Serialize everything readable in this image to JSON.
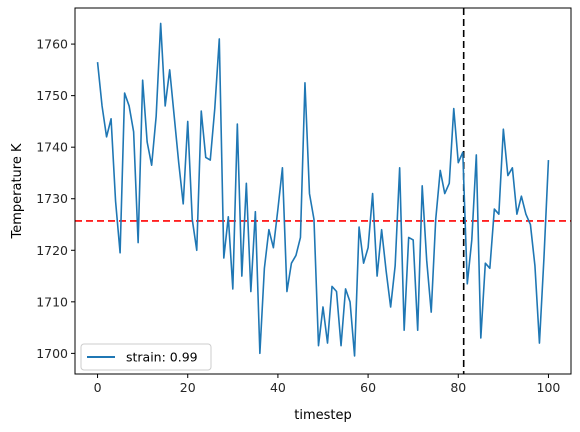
{
  "chart_data": {
    "type": "line",
    "title": "",
    "xlabel": "timestep",
    "ylabel": "Temperature K",
    "xlim": [
      -5,
      105
    ],
    "ylim": [
      1696,
      1767
    ],
    "xticks": [
      0,
      20,
      40,
      60,
      80,
      100
    ],
    "yticks": [
      1700,
      1710,
      1720,
      1730,
      1740,
      1750,
      1760
    ],
    "grid": false,
    "legend_position": "lower-left",
    "series": [
      {
        "name": "strain: 0.99",
        "color": "#1f77b4",
        "x": [
          0,
          1,
          2,
          3,
          4,
          5,
          6,
          7,
          8,
          9,
          10,
          11,
          12,
          13,
          14,
          15,
          16,
          17,
          18,
          19,
          20,
          21,
          22,
          23,
          24,
          25,
          26,
          27,
          28,
          29,
          30,
          31,
          32,
          33,
          34,
          35,
          36,
          37,
          38,
          39,
          40,
          41,
          42,
          43,
          44,
          45,
          46,
          47,
          48,
          49,
          50,
          51,
          52,
          53,
          54,
          55,
          56,
          57,
          58,
          59,
          60,
          61,
          62,
          63,
          64,
          65,
          66,
          67,
          68,
          69,
          70,
          71,
          72,
          73,
          74,
          75,
          76,
          77,
          78,
          79,
          80,
          81,
          82,
          83,
          84,
          85,
          86,
          87,
          88,
          89,
          90,
          91,
          92,
          93,
          94,
          95,
          96,
          97,
          98,
          99,
          100
        ],
        "values": [
          1756.5,
          1748,
          1742,
          1745.5,
          1729.5,
          1719.5,
          1750.5,
          1748,
          1743,
          1721.5,
          1753,
          1741,
          1736.5,
          1746,
          1764,
          1748,
          1755,
          1746,
          1737,
          1729,
          1745,
          1726,
          1720,
          1747,
          1738,
          1737.5,
          1747.5,
          1761,
          1718.5,
          1726.5,
          1712.5,
          1744.5,
          1715,
          1733,
          1712,
          1727.5,
          1700,
          1716.5,
          1724,
          1720.5,
          1728,
          1736,
          1712,
          1717.5,
          1719,
          1722.5,
          1752.5,
          1731,
          1726,
          1701.5,
          1709,
          1702,
          1713,
          1712,
          1701.5,
          1712.5,
          1710,
          1699.5,
          1724.5,
          1717.5,
          1720.5,
          1731,
          1715,
          1724,
          1716,
          1709,
          1717,
          1736,
          1704.5,
          1722.5,
          1722,
          1704.5,
          1732.5,
          1718,
          1708,
          1726,
          1735.5,
          1731,
          1733,
          1747.5,
          1737,
          1739,
          1713.5,
          1722,
          1738.5,
          1703,
          1717.5,
          1716.5,
          1728,
          1727,
          1743.5,
          1734.5,
          1736,
          1727,
          1730.5,
          1727,
          1725,
          1717,
          1702,
          1718.5,
          1737.5
        ]
      }
    ],
    "reference_lines": [
      {
        "orientation": "horizontal",
        "value": 1725.7,
        "color": "#ff0000",
        "style": "dashed"
      },
      {
        "orientation": "vertical",
        "value": 81.2,
        "color": "#000000",
        "style": "dashed"
      }
    ]
  }
}
